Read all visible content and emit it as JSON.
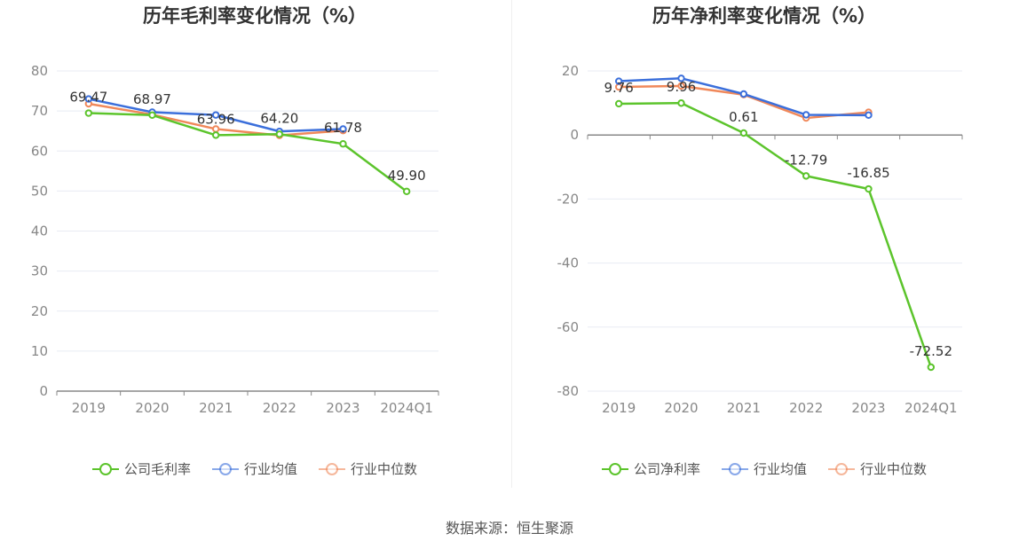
{
  "source": "数据来源：恒生聚源",
  "chart_data": [
    {
      "type": "line",
      "title": "历年毛利率变化情况（%）",
      "categories": [
        "2019",
        "2020",
        "2021",
        "2022",
        "2023",
        "2024Q1"
      ],
      "ylim": [
        0,
        80
      ],
      "yticks": [
        0,
        10,
        20,
        30,
        40,
        50,
        60,
        70,
        80
      ],
      "grid": true,
      "legend_position": "bottom",
      "series": [
        {
          "name": "公司毛利率",
          "color": "#5cc42c",
          "values": [
            69.47,
            68.97,
            63.96,
            64.2,
            61.78,
            49.9
          ],
          "labels": [
            "69.47",
            "68.97",
            "63.96",
            "64.20",
            "61.78",
            "49.90"
          ]
        },
        {
          "name": "行业均值",
          "color": "#3b6fdb",
          "values": [
            73.0,
            69.7,
            69.0,
            64.9,
            65.5,
            null
          ]
        },
        {
          "name": "行业中位数",
          "color": "#f0885a",
          "values": [
            71.8,
            69.1,
            65.5,
            63.9,
            65.1,
            null
          ]
        }
      ]
    },
    {
      "type": "line",
      "title": "历年净利率变化情况（%）",
      "categories": [
        "2019",
        "2020",
        "2021",
        "2022",
        "2023",
        "2024Q1"
      ],
      "ylim": [
        -80,
        20
      ],
      "yticks": [
        -80,
        -60,
        -40,
        -20,
        0,
        20
      ],
      "grid": true,
      "legend_position": "bottom",
      "series": [
        {
          "name": "公司净利率",
          "color": "#5cc42c",
          "values": [
            9.76,
            9.96,
            0.61,
            -12.79,
            -16.85,
            -72.52
          ],
          "labels": [
            "9.76",
            "9.96",
            "0.61",
            "-12.79",
            "-16.85",
            "-72.52"
          ]
        },
        {
          "name": "行业均值",
          "color": "#3b6fdb",
          "values": [
            16.8,
            17.7,
            12.8,
            6.3,
            6.2,
            null
          ]
        },
        {
          "name": "行业中位数",
          "color": "#f0885a",
          "values": [
            15.0,
            15.3,
            12.6,
            5.3,
            7.1,
            null
          ]
        }
      ]
    }
  ]
}
